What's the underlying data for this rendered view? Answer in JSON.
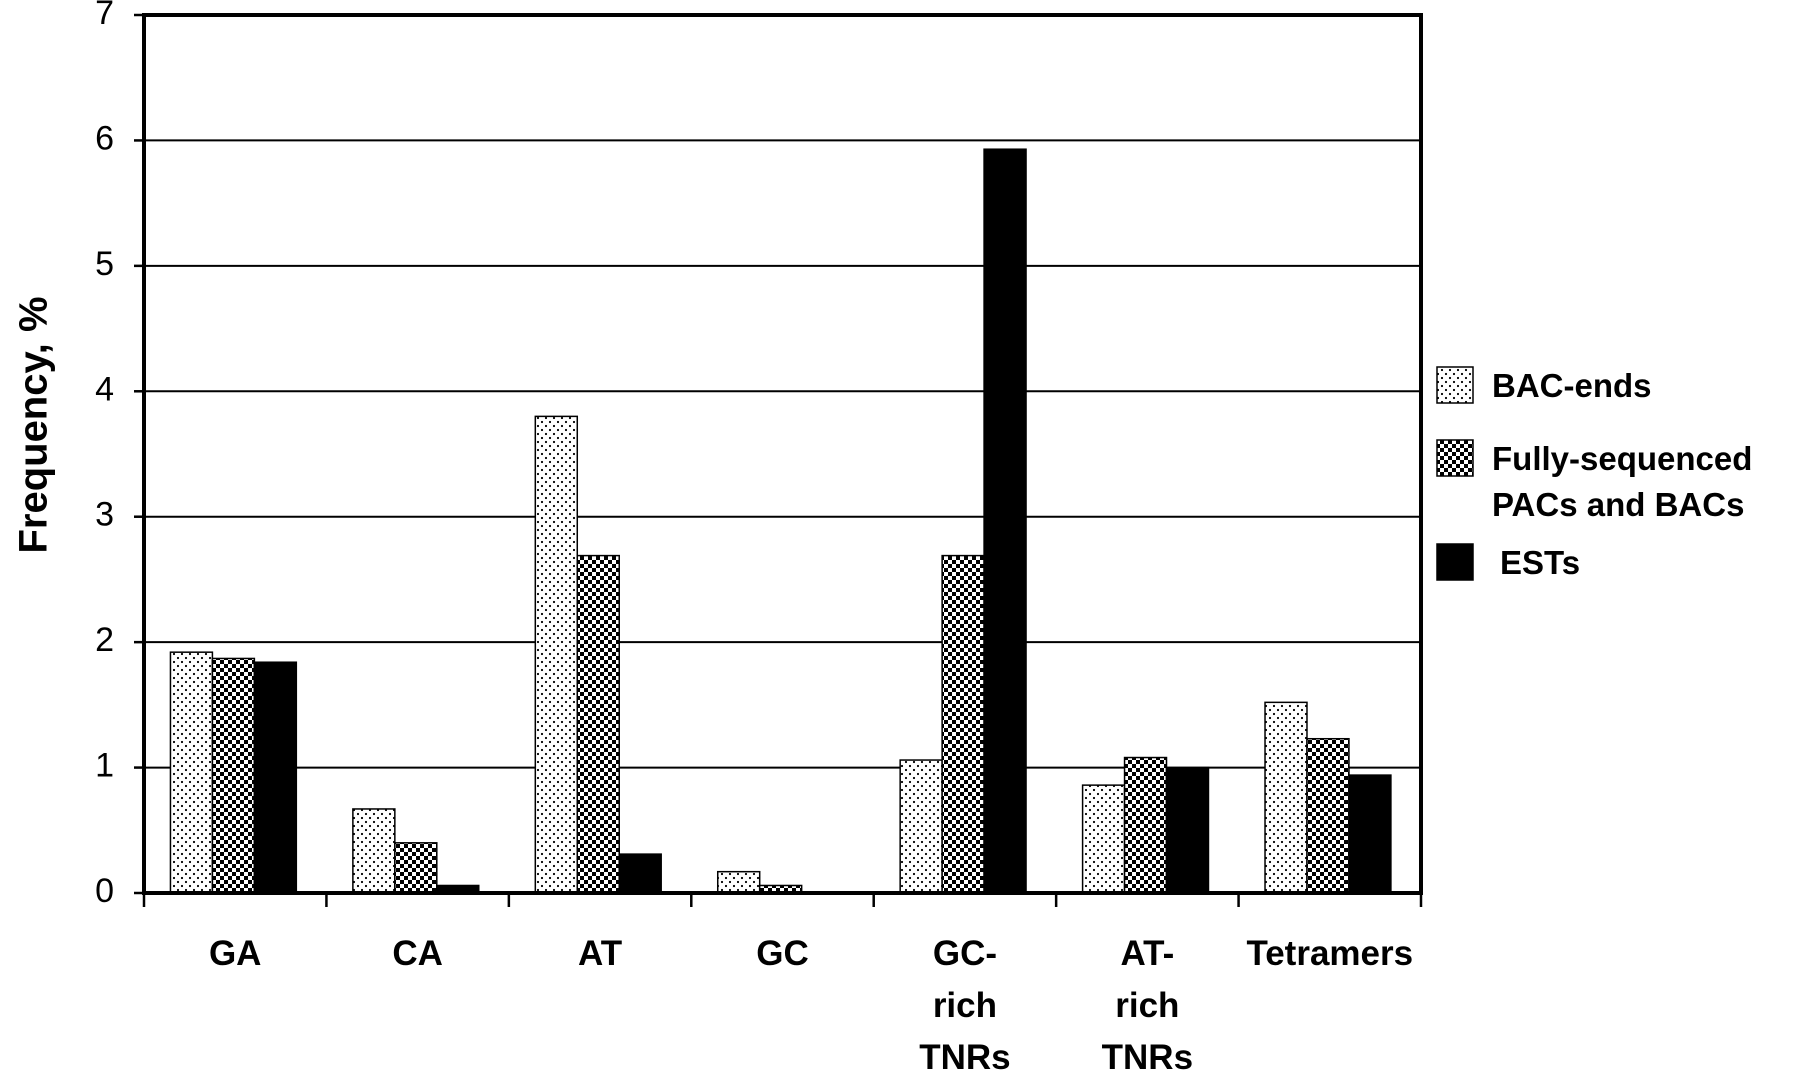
{
  "chart_data": {
    "type": "bar",
    "y_label": "Frequency, %",
    "categories": [
      "GA",
      "CA",
      "AT",
      "GC",
      "GC-\nrich\nTNRs",
      "AT-\nrich\nTNRs",
      "Tetramers"
    ],
    "series": [
      {
        "name": "BAC-ends",
        "color": "#000000",
        "pattern": "dots",
        "values": [
          1.92,
          0.67,
          3.8,
          0.17,
          1.06,
          0.86,
          1.52
        ]
      },
      {
        "name": "Fully-sequenced\nPACs and BACs",
        "color": "#000000",
        "pattern": "checker",
        "values": [
          1.87,
          0.4,
          2.69,
          0.06,
          2.69,
          1.08,
          1.23
        ]
      },
      {
        "name": "ESTs",
        "color": "#000000",
        "pattern": "solid",
        "values": [
          1.84,
          0.06,
          0.31,
          0.01,
          5.93,
          1.0,
          0.94
        ]
      }
    ],
    "ylim": [
      0,
      7
    ],
    "yticks": [
      0,
      1,
      2,
      3,
      4,
      5,
      6,
      7
    ],
    "grid": true,
    "legend": "right"
  }
}
